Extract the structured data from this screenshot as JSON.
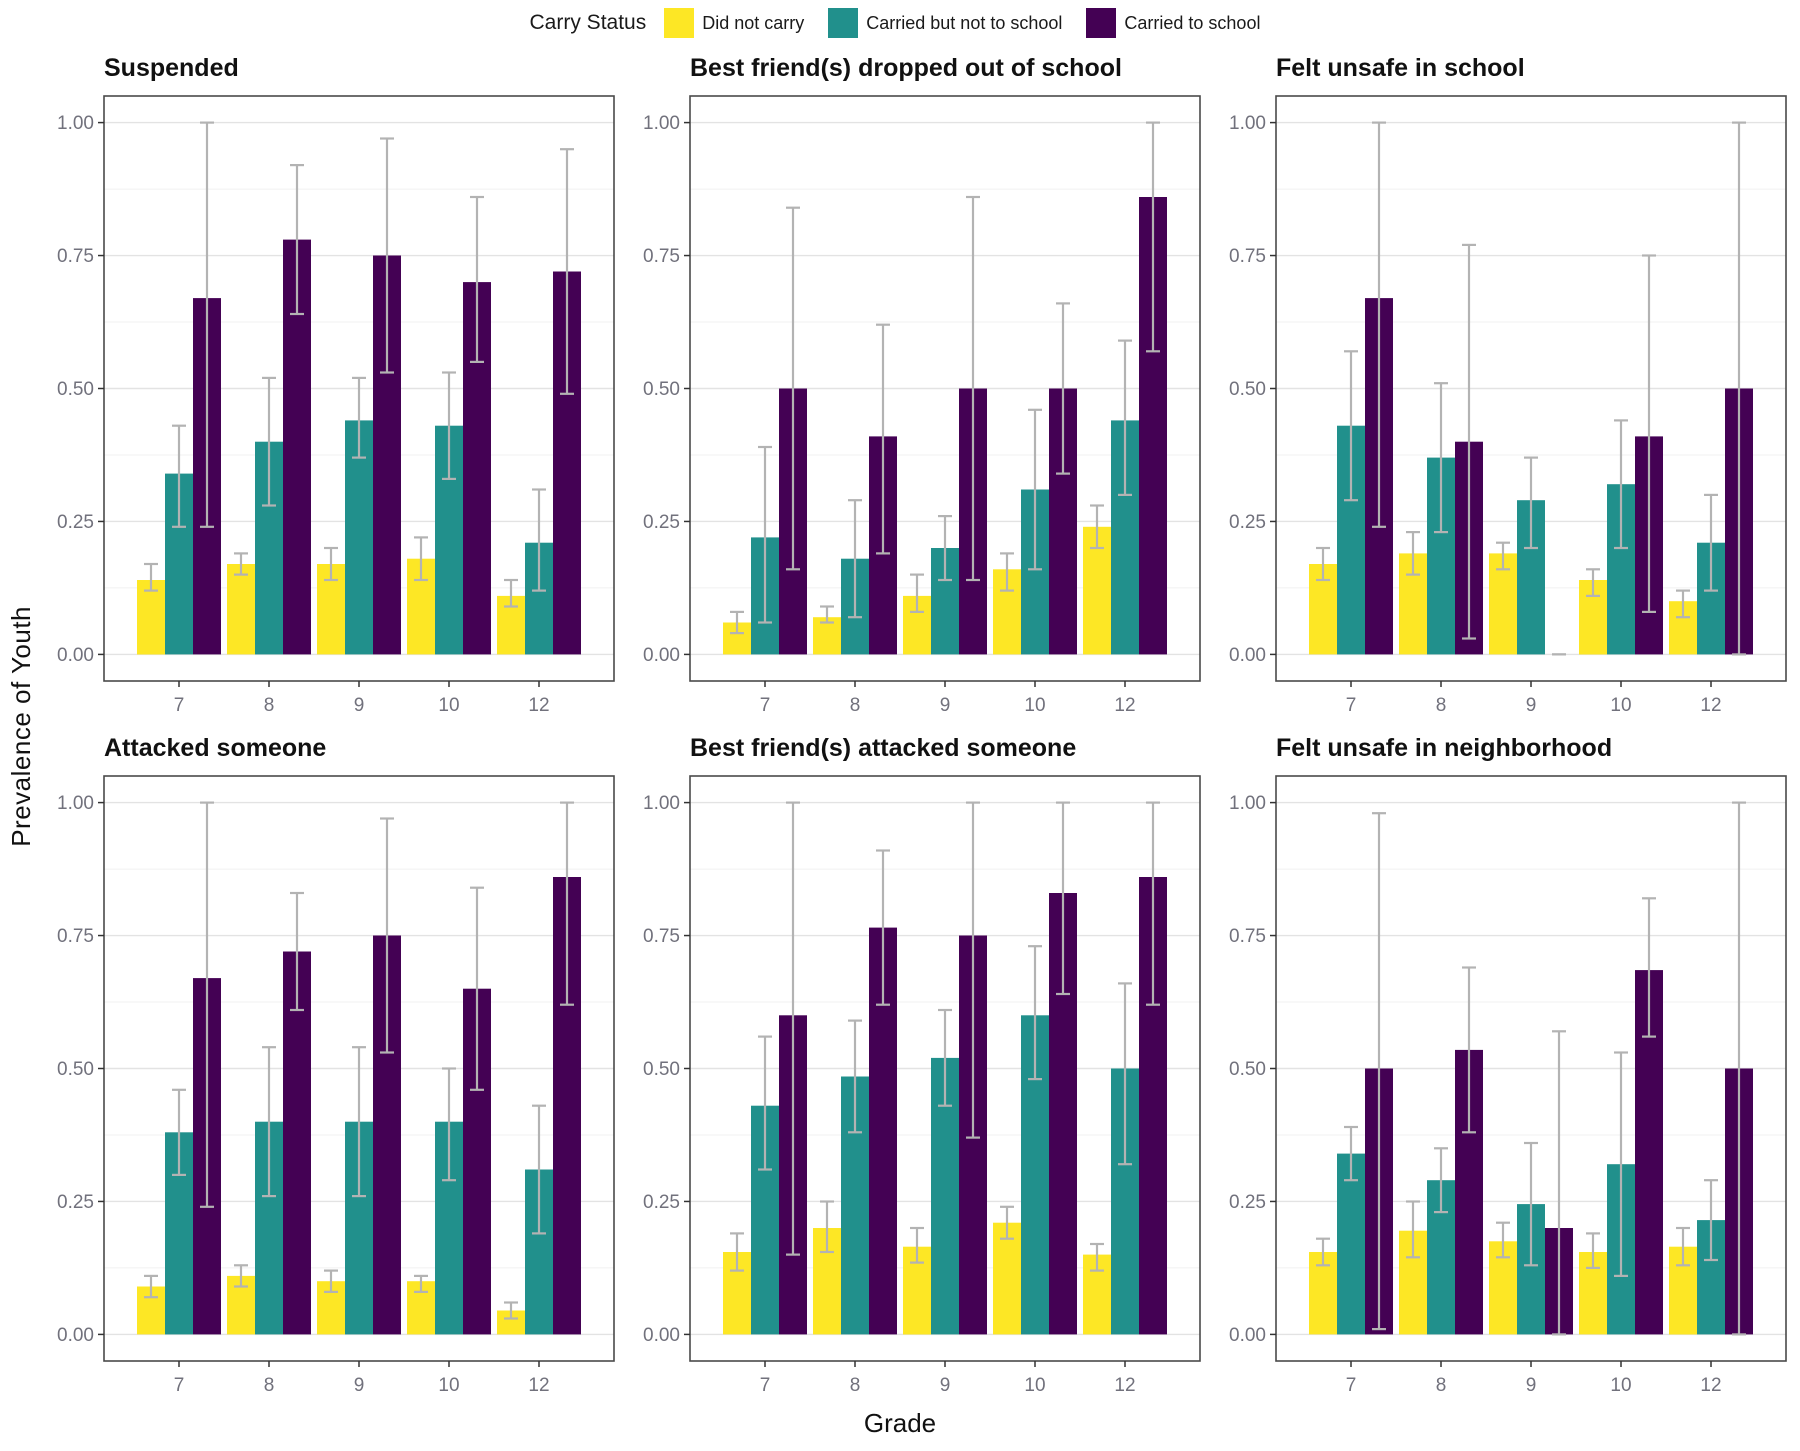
{
  "legend": {
    "title": "Carry Status",
    "items": [
      {
        "label": "Did not carry",
        "color": "#FDE725"
      },
      {
        "label": "Carried but not to school",
        "color": "#21908C"
      },
      {
        "label": "Carried to school",
        "color": "#440154"
      }
    ]
  },
  "axes": {
    "y_title": "Prevalence of Youth",
    "x_title": "Grade",
    "y_tick_labels": [
      "0.00",
      "0.25",
      "0.50",
      "0.75",
      "1.00"
    ],
    "y_tick_values": [
      0,
      0.25,
      0.5,
      0.75,
      1
    ],
    "ylim": [
      0,
      1
    ],
    "grid": "major-and-minor"
  },
  "chart_data": [
    {
      "type": "bar",
      "title": "Suspended",
      "categories": [
        "7",
        "8",
        "9",
        "10",
        "12"
      ],
      "series": [
        {
          "name": "Did not carry",
          "color": "#FDE725",
          "values": [
            0.14,
            0.17,
            0.17,
            0.18,
            0.11
          ],
          "err_low": [
            0.12,
            0.15,
            0.14,
            0.14,
            0.09
          ],
          "err_high": [
            0.17,
            0.19,
            0.2,
            0.22,
            0.14
          ]
        },
        {
          "name": "Carried but not to school",
          "color": "#21908C",
          "values": [
            0.34,
            0.4,
            0.44,
            0.43,
            0.21
          ],
          "err_low": [
            0.24,
            0.28,
            0.37,
            0.33,
            0.12
          ],
          "err_high": [
            0.43,
            0.52,
            0.52,
            0.53,
            0.31
          ]
        },
        {
          "name": "Carried to school",
          "color": "#440154",
          "values": [
            0.67,
            0.78,
            0.75,
            0.7,
            0.72
          ],
          "err_low": [
            0.24,
            0.64,
            0.53,
            0.55,
            0.49
          ],
          "err_high": [
            1.0,
            0.92,
            0.97,
            0.86,
            0.95
          ]
        }
      ]
    },
    {
      "type": "bar",
      "title": "Best friend(s) dropped out of school",
      "categories": [
        "7",
        "8",
        "9",
        "10",
        "12"
      ],
      "series": [
        {
          "name": "Did not carry",
          "color": "#FDE725",
          "values": [
            0.06,
            0.07,
            0.11,
            0.16,
            0.24
          ],
          "err_low": [
            0.04,
            0.06,
            0.08,
            0.12,
            0.2
          ],
          "err_high": [
            0.08,
            0.09,
            0.15,
            0.19,
            0.28
          ]
        },
        {
          "name": "Carried but not to school",
          "color": "#21908C",
          "values": [
            0.22,
            0.18,
            0.2,
            0.31,
            0.44
          ],
          "err_low": [
            0.06,
            0.07,
            0.14,
            0.16,
            0.3
          ],
          "err_high": [
            0.39,
            0.29,
            0.26,
            0.46,
            0.59
          ]
        },
        {
          "name": "Carried to school",
          "color": "#440154",
          "values": [
            0.5,
            0.41,
            0.5,
            0.5,
            0.86
          ],
          "err_low": [
            0.16,
            0.19,
            0.14,
            0.34,
            0.57
          ],
          "err_high": [
            0.84,
            0.62,
            0.86,
            0.66,
            1.0
          ]
        }
      ]
    },
    {
      "type": "bar",
      "title": "Felt unsafe in school",
      "categories": [
        "7",
        "8",
        "9",
        "10",
        "12"
      ],
      "series": [
        {
          "name": "Did not carry",
          "color": "#FDE725",
          "values": [
            0.17,
            0.19,
            0.19,
            0.14,
            0.1
          ],
          "err_low": [
            0.14,
            0.15,
            0.16,
            0.11,
            0.07
          ],
          "err_high": [
            0.2,
            0.23,
            0.21,
            0.16,
            0.12
          ]
        },
        {
          "name": "Carried but not to school",
          "color": "#21908C",
          "values": [
            0.43,
            0.37,
            0.29,
            0.32,
            0.21
          ],
          "err_low": [
            0.29,
            0.23,
            0.2,
            0.2,
            0.12
          ],
          "err_high": [
            0.57,
            0.51,
            0.37,
            0.44,
            0.3
          ]
        },
        {
          "name": "Carried to school",
          "color": "#440154",
          "values": [
            0.67,
            0.4,
            0.0,
            0.41,
            0.5
          ],
          "err_low": [
            0.24,
            0.03,
            0.0,
            0.08,
            0.0
          ],
          "err_high": [
            1.0,
            0.77,
            0.0,
            0.75,
            1.0
          ]
        }
      ]
    },
    {
      "type": "bar",
      "title": "Attacked someone",
      "categories": [
        "7",
        "8",
        "9",
        "10",
        "12"
      ],
      "series": [
        {
          "name": "Did not carry",
          "color": "#FDE725",
          "values": [
            0.09,
            0.11,
            0.1,
            0.1,
            0.045
          ],
          "err_low": [
            0.07,
            0.09,
            0.08,
            0.08,
            0.03
          ],
          "err_high": [
            0.11,
            0.13,
            0.12,
            0.11,
            0.06
          ]
        },
        {
          "name": "Carried but not to school",
          "color": "#21908C",
          "values": [
            0.38,
            0.4,
            0.4,
            0.4,
            0.31
          ],
          "err_low": [
            0.3,
            0.26,
            0.26,
            0.29,
            0.19
          ],
          "err_high": [
            0.46,
            0.54,
            0.54,
            0.5,
            0.43
          ]
        },
        {
          "name": "Carried to school",
          "color": "#440154",
          "values": [
            0.67,
            0.72,
            0.75,
            0.65,
            0.86
          ],
          "err_low": [
            0.24,
            0.61,
            0.53,
            0.46,
            0.62
          ],
          "err_high": [
            1.0,
            0.83,
            0.97,
            0.84,
            1.0
          ]
        }
      ]
    },
    {
      "type": "bar",
      "title": "Best friend(s) attacked someone",
      "categories": [
        "7",
        "8",
        "9",
        "10",
        "12"
      ],
      "series": [
        {
          "name": "Did not carry",
          "color": "#FDE725",
          "values": [
            0.155,
            0.2,
            0.165,
            0.21,
            0.15
          ],
          "err_low": [
            0.12,
            0.155,
            0.135,
            0.18,
            0.12
          ],
          "err_high": [
            0.19,
            0.25,
            0.2,
            0.24,
            0.17
          ]
        },
        {
          "name": "Carried but not to school",
          "color": "#21908C",
          "values": [
            0.43,
            0.485,
            0.52,
            0.6,
            0.5
          ],
          "err_low": [
            0.31,
            0.38,
            0.43,
            0.48,
            0.32
          ],
          "err_high": [
            0.56,
            0.59,
            0.61,
            0.73,
            0.66
          ]
        },
        {
          "name": "Carried to school",
          "color": "#440154",
          "values": [
            0.6,
            0.765,
            0.75,
            0.83,
            0.86
          ],
          "err_low": [
            0.15,
            0.62,
            0.37,
            0.64,
            0.62
          ],
          "err_high": [
            1.0,
            0.91,
            1.0,
            1.0,
            1.0
          ]
        }
      ]
    },
    {
      "type": "bar",
      "title": "Felt unsafe in neighborhood",
      "categories": [
        "7",
        "8",
        "9",
        "10",
        "12"
      ],
      "series": [
        {
          "name": "Did not carry",
          "color": "#FDE725",
          "values": [
            0.155,
            0.195,
            0.175,
            0.155,
            0.165
          ],
          "err_low": [
            0.13,
            0.145,
            0.145,
            0.125,
            0.13
          ],
          "err_high": [
            0.18,
            0.25,
            0.21,
            0.19,
            0.2
          ]
        },
        {
          "name": "Carried but not to school",
          "color": "#21908C",
          "values": [
            0.34,
            0.29,
            0.245,
            0.32,
            0.215
          ],
          "err_low": [
            0.29,
            0.23,
            0.13,
            0.11,
            0.14
          ],
          "err_high": [
            0.39,
            0.35,
            0.36,
            0.53,
            0.29
          ]
        },
        {
          "name": "Carried to school",
          "color": "#440154",
          "values": [
            0.5,
            0.535,
            0.2,
            0.685,
            0.5
          ],
          "err_low": [
            0.01,
            0.38,
            0.0,
            0.56,
            0.0
          ],
          "err_high": [
            0.98,
            0.69,
            0.57,
            0.82,
            1.0
          ]
        }
      ]
    }
  ]
}
